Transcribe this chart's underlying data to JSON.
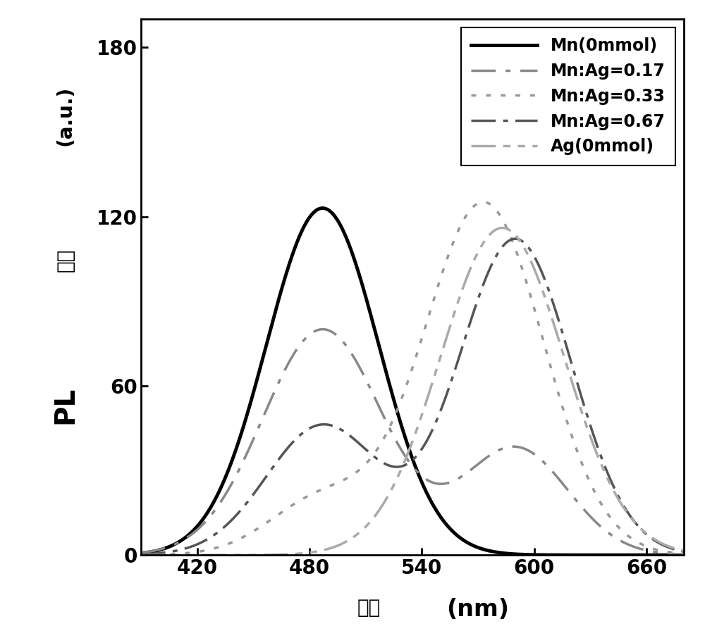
{
  "xlabel_cn": "波长",
  "xlabel_en": "(nm)",
  "ylabel_PL": "PL",
  "ylabel_au": "(a.u.)",
  "ylabel_cn": "强度",
  "xlim": [
    390,
    680
  ],
  "ylim": [
    0,
    190
  ],
  "xticks": [
    420,
    480,
    540,
    600,
    660
  ],
  "yticks": [
    0,
    60,
    120,
    180
  ],
  "series": [
    {
      "label": "Mn(0mmol)",
      "peak": 487,
      "amplitude": 123,
      "sigma": 30,
      "peak2": null,
      "amplitude2": null,
      "sigma2": null,
      "color": "#000000",
      "linewidth": 3.5,
      "dashes": []
    },
    {
      "label": "Mn:Ag=0.17",
      "peak": 487,
      "amplitude": 80,
      "sigma": 32,
      "peak2": 590,
      "amplitude2": 38,
      "sigma2": 28,
      "color": "#888888",
      "linewidth": 2.5,
      "dashes": [
        10,
        4,
        2,
        4
      ]
    },
    {
      "label": "Mn:Ag=0.33",
      "peak": 487,
      "amplitude": 20,
      "sigma": 28,
      "peak2": 573,
      "amplitude2": 125,
      "sigma2": 32,
      "color": "#999999",
      "linewidth": 2.5,
      "dashes": [
        2,
        4
      ]
    },
    {
      "label": "Mn:Ag=0.67",
      "peak": 487,
      "amplitude": 46,
      "sigma": 30,
      "peak2": 590,
      "amplitude2": 112,
      "sigma2": 30,
      "color": "#555555",
      "linewidth": 2.5,
      "dashes": [
        10,
        3,
        2,
        3
      ]
    },
    {
      "label": "Ag(0mmol)",
      "peak": 583,
      "amplitude": 116,
      "sigma": 33,
      "peak2": null,
      "amplitude2": null,
      "sigma2": null,
      "color": "#aaaaaa",
      "linewidth": 2.5,
      "dashes": [
        10,
        3,
        3,
        3,
        3,
        3
      ]
    }
  ],
  "legend_fontsize": 17,
  "tick_fontsize": 20,
  "label_fontsize_large": 24,
  "label_fontsize_medium": 20,
  "background_color": "#ffffff"
}
